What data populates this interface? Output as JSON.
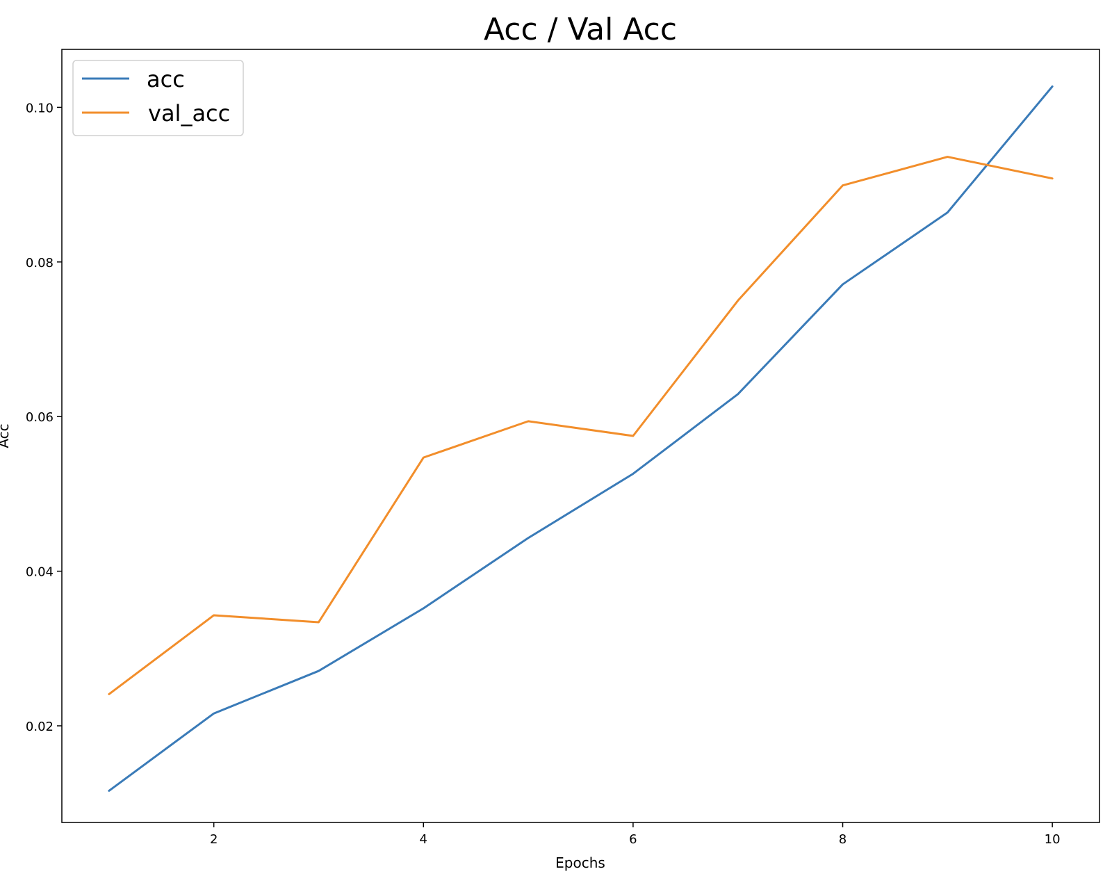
{
  "chart_data": {
    "type": "line",
    "title": "Acc / Val Acc",
    "xlabel": "Epochs",
    "ylabel": "Acc",
    "x": [
      1,
      2,
      3,
      4,
      5,
      6,
      7,
      8,
      9,
      10
    ],
    "series": [
      {
        "name": "acc",
        "color": "#3a7bb8",
        "values": [
          0.0116,
          0.0216,
          0.0271,
          0.0352,
          0.0443,
          0.0526,
          0.0629,
          0.0771,
          0.0864,
          0.1027
        ]
      },
      {
        "name": "val_acc",
        "color": "#f28e2b",
        "values": [
          0.0241,
          0.0343,
          0.0334,
          0.0547,
          0.0594,
          0.0575,
          0.075,
          0.0899,
          0.0936,
          0.0908
        ]
      }
    ],
    "xlim": [
      0.55,
      10.45
    ],
    "ylim": [
      0.0075,
      0.1075
    ],
    "xticks": [
      2,
      4,
      6,
      8,
      10
    ],
    "xtick_labels": [
      "2",
      "4",
      "6",
      "8",
      "10"
    ],
    "yticks": [
      0.02,
      0.04,
      0.06,
      0.08,
      0.1
    ],
    "ytick_labels": [
      "0.02",
      "0.04",
      "0.06",
      "0.08",
      "0.10"
    ],
    "grid": false,
    "legend": "upper-left"
  }
}
